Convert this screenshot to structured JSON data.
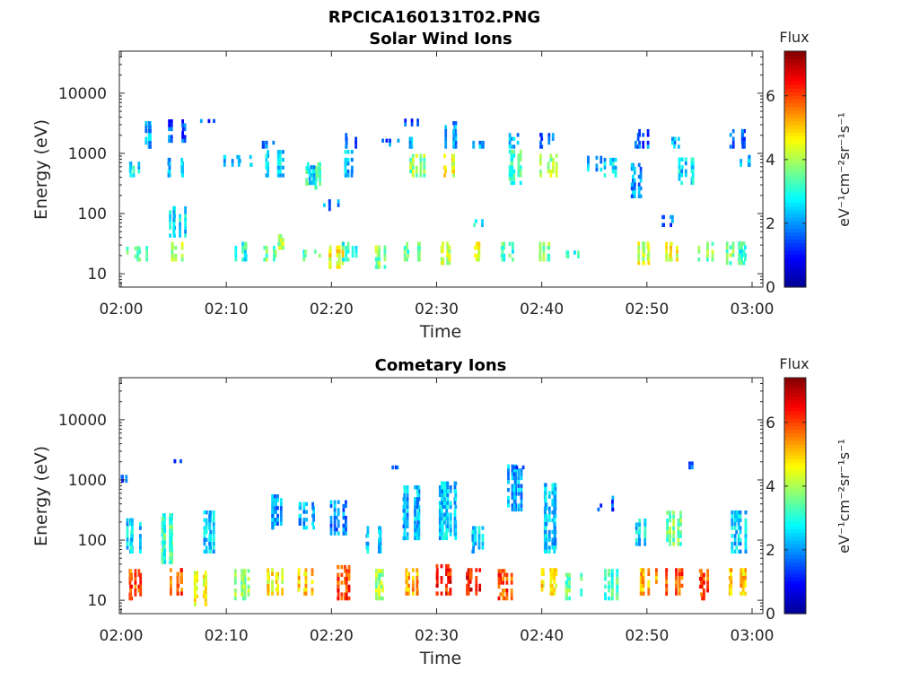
{
  "figure_title": "RPCICA160131T02.PNG",
  "colormap": [
    "#00008f",
    "#0000ff",
    "#0080ff",
    "#00ffff",
    "#80ff80",
    "#ffff00",
    "#ff8000",
    "#ff0000",
    "#800000"
  ],
  "chart_data": [
    {
      "type": "heatmap",
      "title": "Solar Wind Ions",
      "xlabel": "Time",
      "ylabel": "Energy (eV)",
      "x_range": [
        "02:00",
        "03:00"
      ],
      "x_ticks": [
        "02:00",
        "02:10",
        "02:20",
        "02:30",
        "02:40",
        "02:50",
        "03:00"
      ],
      "y_scale": "log",
      "ylim": [
        6,
        50000
      ],
      "y_ticks": [
        "10",
        "100",
        "1000",
        "10000"
      ],
      "colorbar": {
        "title": "Flux",
        "label": "eV⁻¹cm⁻²sr⁻¹s⁻¹",
        "range": [
          0,
          7.4
        ],
        "ticks": [
          "0",
          "2",
          "4",
          "6"
        ]
      },
      "clusters": [
        {
          "t": 1.0,
          "e": [
            18,
            25
          ],
          "flux": 3.4
        },
        {
          "t": 2.0,
          "e": [
            16,
            28
          ],
          "flux": 3.2
        },
        {
          "t": 4.9,
          "e": [
            16,
            32
          ],
          "flux": 4.0
        },
        {
          "t": 5.2,
          "e": [
            40,
            120
          ],
          "flux": 2.6
        },
        {
          "t": 11.0,
          "e": [
            16,
            30
          ],
          "flux": 3.0
        },
        {
          "t": 14.0,
          "e": [
            16,
            28
          ],
          "flux": 3.6
        },
        {
          "t": 14.8,
          "e": [
            25,
            40
          ],
          "flux": 4.0
        },
        {
          "t": 18.0,
          "e": [
            16,
            25
          ],
          "flux": 3.2
        },
        {
          "t": 20.5,
          "e": [
            12,
            30
          ],
          "flux": 4.6
        },
        {
          "t": 21.5,
          "e": [
            16,
            32
          ],
          "flux": 3.0
        },
        {
          "t": 24.5,
          "e": [
            12,
            28
          ],
          "flux": 3.8
        },
        {
          "t": 27.5,
          "e": [
            16,
            32
          ],
          "flux": 3.4
        },
        {
          "t": 30.5,
          "e": [
            14,
            32
          ],
          "flux": 4.1
        },
        {
          "t": 33.5,
          "e": [
            16,
            30
          ],
          "flux": 4.4
        },
        {
          "t": 36.5,
          "e": [
            16,
            30
          ],
          "flux": 3.2
        },
        {
          "t": 40.5,
          "e": [
            16,
            30
          ],
          "flux": 3.7
        },
        {
          "t": 43.0,
          "e": [
            18,
            24
          ],
          "flux": 3.0
        },
        {
          "t": 49.5,
          "e": [
            14,
            30
          ],
          "flux": 4.3
        },
        {
          "t": 52.5,
          "e": [
            16,
            30
          ],
          "flux": 4.6
        },
        {
          "t": 55.5,
          "e": [
            16,
            30
          ],
          "flux": 3.7
        },
        {
          "t": 58.0,
          "e": [
            14,
            32
          ],
          "flux": 3.7
        },
        {
          "t": 59.0,
          "e": [
            14,
            32
          ],
          "flux": 3.1
        },
        {
          "t": 1.5,
          "e": [
            400,
            700
          ],
          "flux": 2.7
        },
        {
          "t": 1.9,
          "e": [
            1200,
            3000
          ],
          "flux": 2.2
        },
        {
          "t": 5.0,
          "e": [
            400,
            800
          ],
          "flux": 2.3
        },
        {
          "t": 5.2,
          "e": [
            1500,
            3400
          ],
          "flux": 1.6
        },
        {
          "t": 8.0,
          "e": [
            3200,
            3400
          ],
          "flux": 1.5
        },
        {
          "t": 10.5,
          "e": [
            600,
            900
          ],
          "flux": 2.3
        },
        {
          "t": 11.5,
          "e": [
            600,
            900
          ],
          "flux": 2.8
        },
        {
          "t": 14.0,
          "e": [
            1200,
            1600
          ],
          "flux": 1.6
        },
        {
          "t": 14.5,
          "e": [
            400,
            1000
          ],
          "flux": 2.5
        },
        {
          "t": 18.0,
          "e": [
            250,
            700
          ],
          "flux": 3.3
        },
        {
          "t": 18.5,
          "e": [
            300,
            600
          ],
          "flux": 2.4
        },
        {
          "t": 20.0,
          "e": [
            110,
            150
          ],
          "flux": 1.8
        },
        {
          "t": 21.5,
          "e": [
            1200,
            2000
          ],
          "flux": 1.6
        },
        {
          "t": 21.5,
          "e": [
            400,
            1000
          ],
          "flux": 2.3
        },
        {
          "t": 25.5,
          "e": [
            1300,
            1700
          ],
          "flux": 1.8
        },
        {
          "t": 27.5,
          "e": [
            2800,
            3400
          ],
          "flux": 1.6
        },
        {
          "t": 28.0,
          "e": [
            1200,
            1800
          ],
          "flux": 2.0
        },
        {
          "t": 28.0,
          "e": [
            400,
            900
          ],
          "flux": 3.8
        },
        {
          "t": 31.0,
          "e": [
            1200,
            3000
          ],
          "flux": 2.0
        },
        {
          "t": 31.0,
          "e": [
            400,
            900
          ],
          "flux": 4.6
        },
        {
          "t": 34.0,
          "e": [
            1200,
            1500
          ],
          "flux": 2.2
        },
        {
          "t": 34.0,
          "e": [
            60,
            80
          ],
          "flux": 2.6
        },
        {
          "t": 37.5,
          "e": [
            1200,
            2000
          ],
          "flux": 2.3
        },
        {
          "t": 37.5,
          "e": [
            300,
            1000
          ],
          "flux": 3.2
        },
        {
          "t": 40.5,
          "e": [
            1200,
            2000
          ],
          "flux": 1.7
        },
        {
          "t": 40.5,
          "e": [
            400,
            900
          ],
          "flux": 4.0
        },
        {
          "t": 45.0,
          "e": [
            500,
            800
          ],
          "flux": 2.2
        },
        {
          "t": 46.5,
          "e": [
            400,
            800
          ],
          "flux": 2.4
        },
        {
          "t": 49.5,
          "e": [
            1200,
            2200
          ],
          "flux": 1.6
        },
        {
          "t": 49.0,
          "e": [
            180,
            600
          ],
          "flux": 2.0
        },
        {
          "t": 52.5,
          "e": [
            1200,
            1700
          ],
          "flux": 2.2
        },
        {
          "t": 53.5,
          "e": [
            300,
            800
          ],
          "flux": 2.5
        },
        {
          "t": 52.0,
          "e": [
            60,
            90
          ],
          "flux": 1.6
        },
        {
          "t": 58.5,
          "e": [
            1200,
            2500
          ],
          "flux": 1.6
        },
        {
          "t": 59.0,
          "e": [
            600,
            900
          ],
          "flux": 2.2
        }
      ]
    },
    {
      "type": "heatmap",
      "title": "Cometary Ions",
      "xlabel": "Time",
      "ylabel": "Energy (eV)",
      "x_range": [
        "02:00",
        "03:00"
      ],
      "x_ticks": [
        "02:00",
        "02:10",
        "02:20",
        "02:30",
        "02:40",
        "02:50",
        "03:00"
      ],
      "y_scale": "log",
      "ylim": [
        6,
        50000
      ],
      "y_ticks": [
        "10",
        "100",
        "1000",
        "10000"
      ],
      "colorbar": {
        "title": "Flux",
        "label": "eV⁻¹cm⁻²sr⁻¹s⁻¹",
        "range": [
          0,
          7.4
        ],
        "ticks": [
          "0",
          "2",
          "4",
          "6"
        ]
      },
      "clusters": [
        {
          "t": 1.0,
          "e": [
            10,
            32
          ],
          "flux": 5.9
        },
        {
          "t": 4.9,
          "e": [
            12,
            32
          ],
          "flux": 5.9
        },
        {
          "t": 7.5,
          "e": [
            8,
            30
          ],
          "flux": 4.4
        },
        {
          "t": 11.5,
          "e": [
            10,
            30
          ],
          "flux": 3.7
        },
        {
          "t": 14.5,
          "e": [
            12,
            32
          ],
          "flux": 4.7
        },
        {
          "t": 17.5,
          "e": [
            12,
            32
          ],
          "flux": 5.0
        },
        {
          "t": 20.8,
          "e": [
            10,
            35
          ],
          "flux": 6.0
        },
        {
          "t": 24.5,
          "e": [
            10,
            30
          ],
          "flux": 4.0
        },
        {
          "t": 27.5,
          "e": [
            12,
            32
          ],
          "flux": 5.3
        },
        {
          "t": 30.5,
          "e": [
            12,
            35
          ],
          "flux": 6.3
        },
        {
          "t": 33.5,
          "e": [
            12,
            32
          ],
          "flux": 6.3
        },
        {
          "t": 36.5,
          "e": [
            10,
            32
          ],
          "flux": 5.9
        },
        {
          "t": 40.5,
          "e": [
            12,
            32
          ],
          "flux": 4.7
        },
        {
          "t": 43.0,
          "e": [
            10,
            25
          ],
          "flux": 3.5
        },
        {
          "t": 46.5,
          "e": [
            10,
            30
          ],
          "flux": 3.3
        },
        {
          "t": 50.0,
          "e": [
            12,
            32
          ],
          "flux": 5.3
        },
        {
          "t": 52.5,
          "e": [
            12,
            32
          ],
          "flux": 5.9
        },
        {
          "t": 55.5,
          "e": [
            10,
            32
          ],
          "flux": 6.0
        },
        {
          "t": 58.5,
          "e": [
            12,
            32
          ],
          "flux": 5.0
        },
        {
          "t": 1.0,
          "e": [
            60,
            200
          ],
          "flux": 2.5
        },
        {
          "t": 4.5,
          "e": [
            40,
            250
          ],
          "flux": 3.2
        },
        {
          "t": 8.5,
          "e": [
            60,
            300
          ],
          "flux": 2.4
        },
        {
          "t": 14.5,
          "e": [
            150,
            500
          ],
          "flux": 2.1
        },
        {
          "t": 17.5,
          "e": [
            150,
            400
          ],
          "flux": 2.2
        },
        {
          "t": 20.5,
          "e": [
            120,
            400
          ],
          "flux": 1.9
        },
        {
          "t": 24.0,
          "e": [
            60,
            150
          ],
          "flux": 2.4
        },
        {
          "t": 27.5,
          "e": [
            100,
            800
          ],
          "flux": 2.3
        },
        {
          "t": 31.0,
          "e": [
            100,
            900
          ],
          "flux": 2.4
        },
        {
          "t": 34.0,
          "e": [
            60,
            150
          ],
          "flux": 2.4
        },
        {
          "t": 37.5,
          "e": [
            300,
            1600
          ],
          "flux": 2.1
        },
        {
          "t": 40.5,
          "e": [
            60,
            800
          ],
          "flux": 2.4
        },
        {
          "t": 46.0,
          "e": [
            300,
            500
          ],
          "flux": 1.6
        },
        {
          "t": 49.0,
          "e": [
            80,
            200
          ],
          "flux": 2.6
        },
        {
          "t": 52.5,
          "e": [
            80,
            300
          ],
          "flux": 3.6
        },
        {
          "t": 58.5,
          "e": [
            60,
            280
          ],
          "flux": 2.4
        },
        {
          "t": 0.5,
          "e": [
            900,
            1100
          ],
          "flux": 1.6
        },
        {
          "t": 5.2,
          "e": [
            1900,
            2100
          ],
          "flux": 1.5
        },
        {
          "t": 25.5,
          "e": [
            1500,
            1700
          ],
          "flux": 1.7
        },
        {
          "t": 37.5,
          "e": [
            1500,
            1700
          ],
          "flux": 1.5
        },
        {
          "t": 53.5,
          "e": [
            1500,
            2000
          ],
          "flux": 1.5
        }
      ]
    }
  ]
}
